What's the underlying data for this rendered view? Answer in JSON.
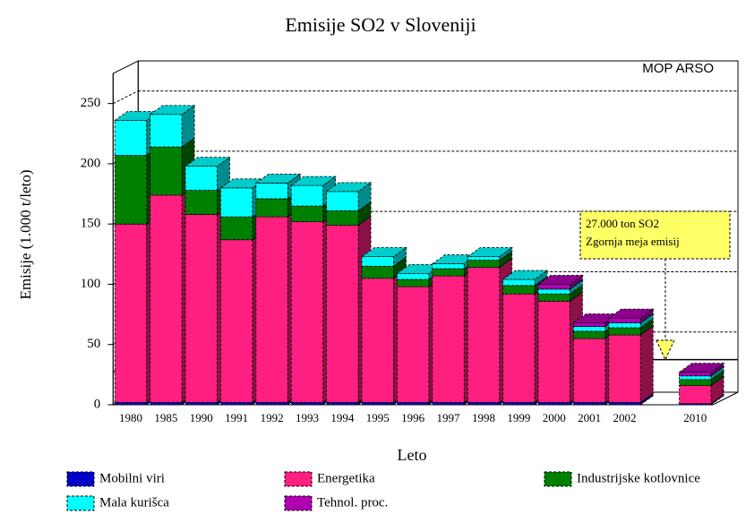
{
  "chart_data": {
    "type": "bar3d-stacked",
    "title": "Emisije SO2 v Sloveniji",
    "ylabel": "Emisije (1.000 t/leto)",
    "xlabel": "Leto",
    "source": "MOP ARSO",
    "limit": 27,
    "limit_label": [
      "27.000 ton SO2",
      "Zgornja meja emisij"
    ],
    "categories": [
      "1980",
      "1985",
      "1990",
      "1991",
      "1992",
      "1993",
      "1994",
      "1995",
      "1996",
      "1997",
      "1998",
      "1999",
      "2000",
      "2001",
      "2002",
      null,
      "2010"
    ],
    "series": [
      {
        "name": "Mobilni viri",
        "color": "#0000c8",
        "values": [
          2,
          2,
          2,
          2,
          2,
          2,
          2,
          2,
          2,
          2,
          2,
          2,
          2,
          2,
          2,
          null,
          1
        ]
      },
      {
        "name": "Energetika",
        "color": "#ff1f80",
        "values": [
          148,
          172,
          156,
          135,
          154,
          150,
          147,
          103,
          96,
          105,
          112,
          90,
          84,
          53,
          56,
          null,
          15
        ]
      },
      {
        "name": "Industrijske kotlovnice",
        "color": "#008000",
        "values": [
          57,
          40,
          20,
          19,
          15,
          13,
          12,
          10,
          6,
          6,
          6,
          7,
          6,
          6,
          6,
          null,
          5
        ]
      },
      {
        "name": "Mala kurišca",
        "color": "#00ffff",
        "values": [
          29,
          27,
          20,
          24,
          13,
          17,
          16,
          8,
          5,
          4,
          3,
          5,
          4,
          4,
          4,
          null,
          3
        ]
      },
      {
        "name": "Tehnol. proc.",
        "color": "#b000b0",
        "values": [
          null,
          null,
          null,
          null,
          null,
          null,
          null,
          null,
          null,
          null,
          null,
          null,
          4,
          3,
          4,
          null,
          3
        ]
      }
    ],
    "ylim": [
      0,
      275
    ],
    "yticks": [
      0,
      50,
      100,
      150,
      200,
      250
    ],
    "grid": true,
    "legend": "bottom"
  }
}
